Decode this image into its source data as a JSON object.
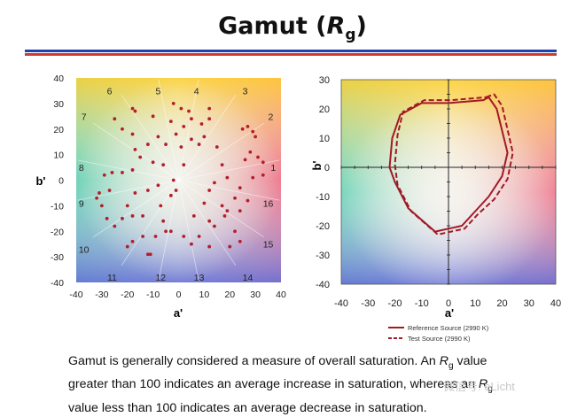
{
  "slide": {
    "title": "Gamut (",
    "title_italic": "R",
    "title_sub": "g",
    "title_end": ")",
    "caption_lines": [
      {
        "pre": "Gamut is generally considered a measure of overall saturation. An ",
        "it": "R",
        "sub": "g",
        "post": " value"
      },
      {
        "pre": "greater than 100 indicates an average increase in saturation, whereas an ",
        "it": "R",
        "sub": "g",
        "post": ""
      },
      {
        "pre": "value less than 100 indicates an average decrease in saturation.",
        "it": "",
        "sub": "",
        "post": ""
      }
    ],
    "watermark": "微信号: eLicht"
  },
  "colors": {
    "rule_blue": "#1f3fae",
    "rule_red": "#d03a2a",
    "point": "#b41e2a",
    "line": "#a11a26"
  },
  "chart_data": [
    {
      "type": "scatter",
      "xlabel": "a'",
      "ylabel": "b'",
      "xlim": [
        -40,
        40
      ],
      "ylim": [
        -40,
        40
      ],
      "xticks": [
        -40,
        -30,
        -20,
        -10,
        0,
        10,
        20,
        30,
        40
      ],
      "yticks": [
        40,
        30,
        20,
        10,
        0,
        -10,
        -20,
        -30,
        -40
      ],
      "background": "hue-gradient",
      "bin_labels": [
        {
          "text": "1",
          "x": 37,
          "y": 5
        },
        {
          "text": "2",
          "x": 36,
          "y": 25
        },
        {
          "text": "3",
          "x": 26,
          "y": 35
        },
        {
          "text": "4",
          "x": 7,
          "y": 35
        },
        {
          "text": "5",
          "x": -8,
          "y": 35
        },
        {
          "text": "6",
          "x": -27,
          "y": 35
        },
        {
          "text": "7",
          "x": -37,
          "y": 25
        },
        {
          "text": "8",
          "x": -38,
          "y": 5
        },
        {
          "text": "9",
          "x": -38,
          "y": -9
        },
        {
          "text": "10",
          "x": -37,
          "y": -27
        },
        {
          "text": "11",
          "x": -26,
          "y": -38
        },
        {
          "text": "12",
          "x": -7,
          "y": -38
        },
        {
          "text": "13",
          "x": 8,
          "y": -38
        },
        {
          "text": "14",
          "x": 27,
          "y": -38
        },
        {
          "text": "15",
          "x": 35,
          "y": -25
        },
        {
          "text": "16",
          "x": 35,
          "y": -9
        }
      ],
      "points": [
        [
          -18,
          28
        ],
        [
          -17,
          27
        ],
        [
          -2,
          30
        ],
        [
          1,
          28
        ],
        [
          4,
          27
        ],
        [
          5,
          24
        ],
        [
          12,
          28
        ],
        [
          12,
          24
        ],
        [
          -10,
          25
        ],
        [
          -3,
          23
        ],
        [
          2,
          21
        ],
        [
          9,
          22
        ],
        [
          -8,
          17
        ],
        [
          -1,
          18
        ],
        [
          5,
          16
        ],
        [
          10,
          17
        ],
        [
          -18,
          18
        ],
        [
          -17,
          12
        ],
        [
          -12,
          14
        ],
        [
          -5,
          14
        ],
        [
          1,
          13
        ],
        [
          8,
          14
        ],
        [
          15,
          13
        ],
        [
          -25,
          24
        ],
        [
          -22,
          20
        ],
        [
          27,
          21
        ],
        [
          29,
          19
        ],
        [
          30,
          17
        ],
        [
          25,
          20
        ],
        [
          28,
          11
        ],
        [
          31,
          9
        ],
        [
          33,
          7
        ],
        [
          33,
          2
        ],
        [
          26,
          8
        ],
        [
          29,
          1
        ],
        [
          24,
          -3
        ],
        [
          19,
          1
        ],
        [
          17,
          6
        ],
        [
          14,
          -1
        ],
        [
          22,
          -7
        ],
        [
          27,
          -8
        ],
        [
          24,
          -12
        ],
        [
          19,
          -12
        ],
        [
          17,
          -10
        ],
        [
          12,
          -4
        ],
        [
          10,
          -9
        ],
        [
          6,
          -14
        ],
        [
          12,
          -16
        ],
        [
          14,
          -18
        ],
        [
          8,
          -22
        ],
        [
          2,
          -22
        ],
        [
          -3,
          -20
        ],
        [
          -6,
          -16
        ],
        [
          -7,
          -10
        ],
        [
          -3,
          -6
        ],
        [
          -8,
          -2
        ],
        [
          -12,
          -4
        ],
        [
          -17,
          -5
        ],
        [
          -20,
          -10
        ],
        [
          -18,
          -14
        ],
        [
          -22,
          -15
        ],
        [
          -25,
          -18
        ],
        [
          -28,
          -15
        ],
        [
          -30,
          -10
        ],
        [
          -31,
          -5
        ],
        [
          -32,
          -7
        ],
        [
          -29,
          2
        ],
        [
          -26,
          3
        ],
        [
          -27,
          -4
        ],
        [
          -22,
          3
        ],
        [
          -18,
          4
        ],
        [
          -15,
          9
        ],
        [
          -10,
          7
        ],
        [
          -6,
          6
        ],
        [
          2,
          6
        ],
        [
          -2,
          0
        ],
        [
          -1,
          -4
        ],
        [
          -14,
          -22
        ],
        [
          -18,
          -24
        ],
        [
          -20,
          -26
        ],
        [
          -12,
          -29
        ],
        [
          -11,
          -29
        ],
        [
          -5,
          -20
        ],
        [
          5,
          -25
        ],
        [
          12,
          -26
        ],
        [
          20,
          -26
        ],
        [
          24,
          -24
        ],
        [
          22,
          -20
        ],
        [
          -14,
          -14
        ],
        [
          -9,
          -22
        ],
        [
          18,
          -14
        ]
      ]
    },
    {
      "type": "line",
      "xlabel": "a'",
      "ylabel": "b'",
      "xlim": [
        -40,
        40
      ],
      "ylim": [
        -40,
        30
      ],
      "xticks": [
        -40,
        -30,
        -20,
        -10,
        0,
        10,
        20,
        30,
        40
      ],
      "yticks": [
        30,
        20,
        10,
        0,
        -10,
        -20,
        -30,
        -40
      ],
      "background": "hue-gradient",
      "legend": {
        "position": "bottom-right"
      },
      "series": [
        {
          "name": "Reference Source (2990 K)",
          "style": "solid",
          "x": [
            13,
            15,
            18,
            22,
            20,
            15,
            10,
            5,
            -5,
            -15,
            -20,
            -22,
            -21,
            -18,
            -10,
            0
          ],
          "y": [
            23,
            24,
            20,
            5,
            -3,
            -10,
            -15,
            -20,
            -22,
            -14,
            -5,
            0,
            10,
            18,
            22,
            22
          ]
        },
        {
          "name": "Test Source (2990 K)",
          "style": "dashed",
          "x": [
            14,
            17,
            20,
            24,
            22,
            17,
            11,
            6,
            -4,
            -14,
            -19,
            -20,
            -19,
            -17,
            -9,
            1
          ],
          "y": [
            24,
            25,
            21,
            5,
            -4,
            -11,
            -16,
            -21,
            -23,
            -15,
            -6,
            1,
            11,
            19,
            23,
            23
          ]
        }
      ]
    }
  ]
}
